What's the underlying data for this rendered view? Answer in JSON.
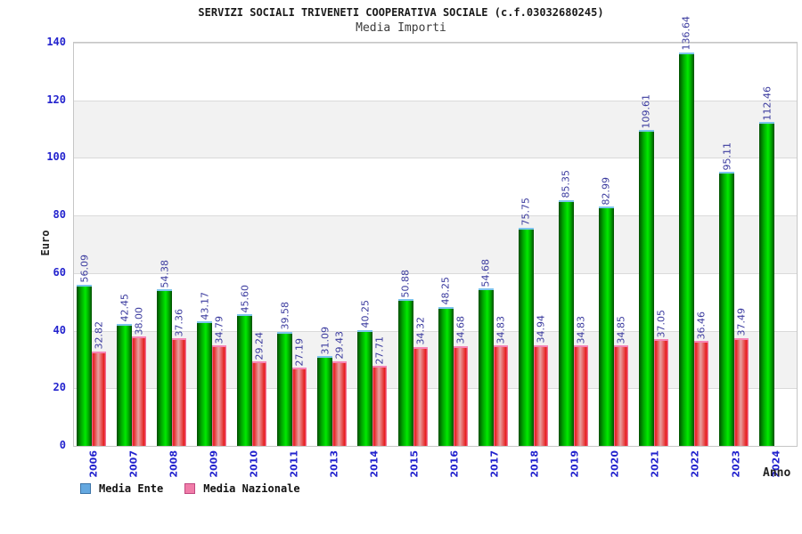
{
  "header": {
    "title": "SERVIZI SOCIALI TRIVENETI COOPERATIVA SOCIALE (c.f.03032680245)",
    "subtitle": "Media Importi"
  },
  "chart_data": {
    "type": "bar",
    "title": "SERVIZI SOCIALI TRIVENETI COOPERATIVA SOCIALE (c.f.03032680245)",
    "subtitle": "Media Importi",
    "xlabel": "Anno",
    "ylabel": "Euro",
    "ylim": [
      0,
      140
    ],
    "ytick_step": 20,
    "ytick_labels": [
      "0",
      "20",
      "40",
      "60",
      "80",
      "100",
      "120",
      "140"
    ],
    "grid": true,
    "band_colors": [
      "#ffffff",
      "#f2f2f2"
    ],
    "legend_position": "bottom-left",
    "categories": [
      "2006",
      "2007",
      "2008",
      "2009",
      "2010",
      "2011",
      "2013",
      "2014",
      "2015",
      "2016",
      "2017",
      "2018",
      "2019",
      "2020",
      "2021",
      "2022",
      "2023",
      "2024"
    ],
    "series": [
      {
        "name": "Media Ente",
        "swatch_color": "#64a8e0",
        "bar_color": "#00b300",
        "values": [
          56.09,
          42.45,
          54.38,
          43.17,
          45.6,
          39.58,
          31.09,
          40.25,
          50.88,
          48.25,
          54.68,
          75.75,
          85.35,
          82.99,
          109.61,
          136.64,
          95.11,
          112.46
        ]
      },
      {
        "name": "Media Nazionale",
        "swatch_color": "#f07ca8",
        "bar_color": "#e61c1c",
        "values": [
          32.82,
          38.0,
          37.36,
          34.79,
          29.24,
          27.19,
          29.43,
          27.71,
          34.32,
          34.68,
          34.83,
          34.94,
          34.83,
          34.85,
          37.05,
          36.46,
          37.49,
          null
        ]
      }
    ],
    "value_label_color": "#3a3a9e",
    "tick_label_color": "#2323ce"
  }
}
